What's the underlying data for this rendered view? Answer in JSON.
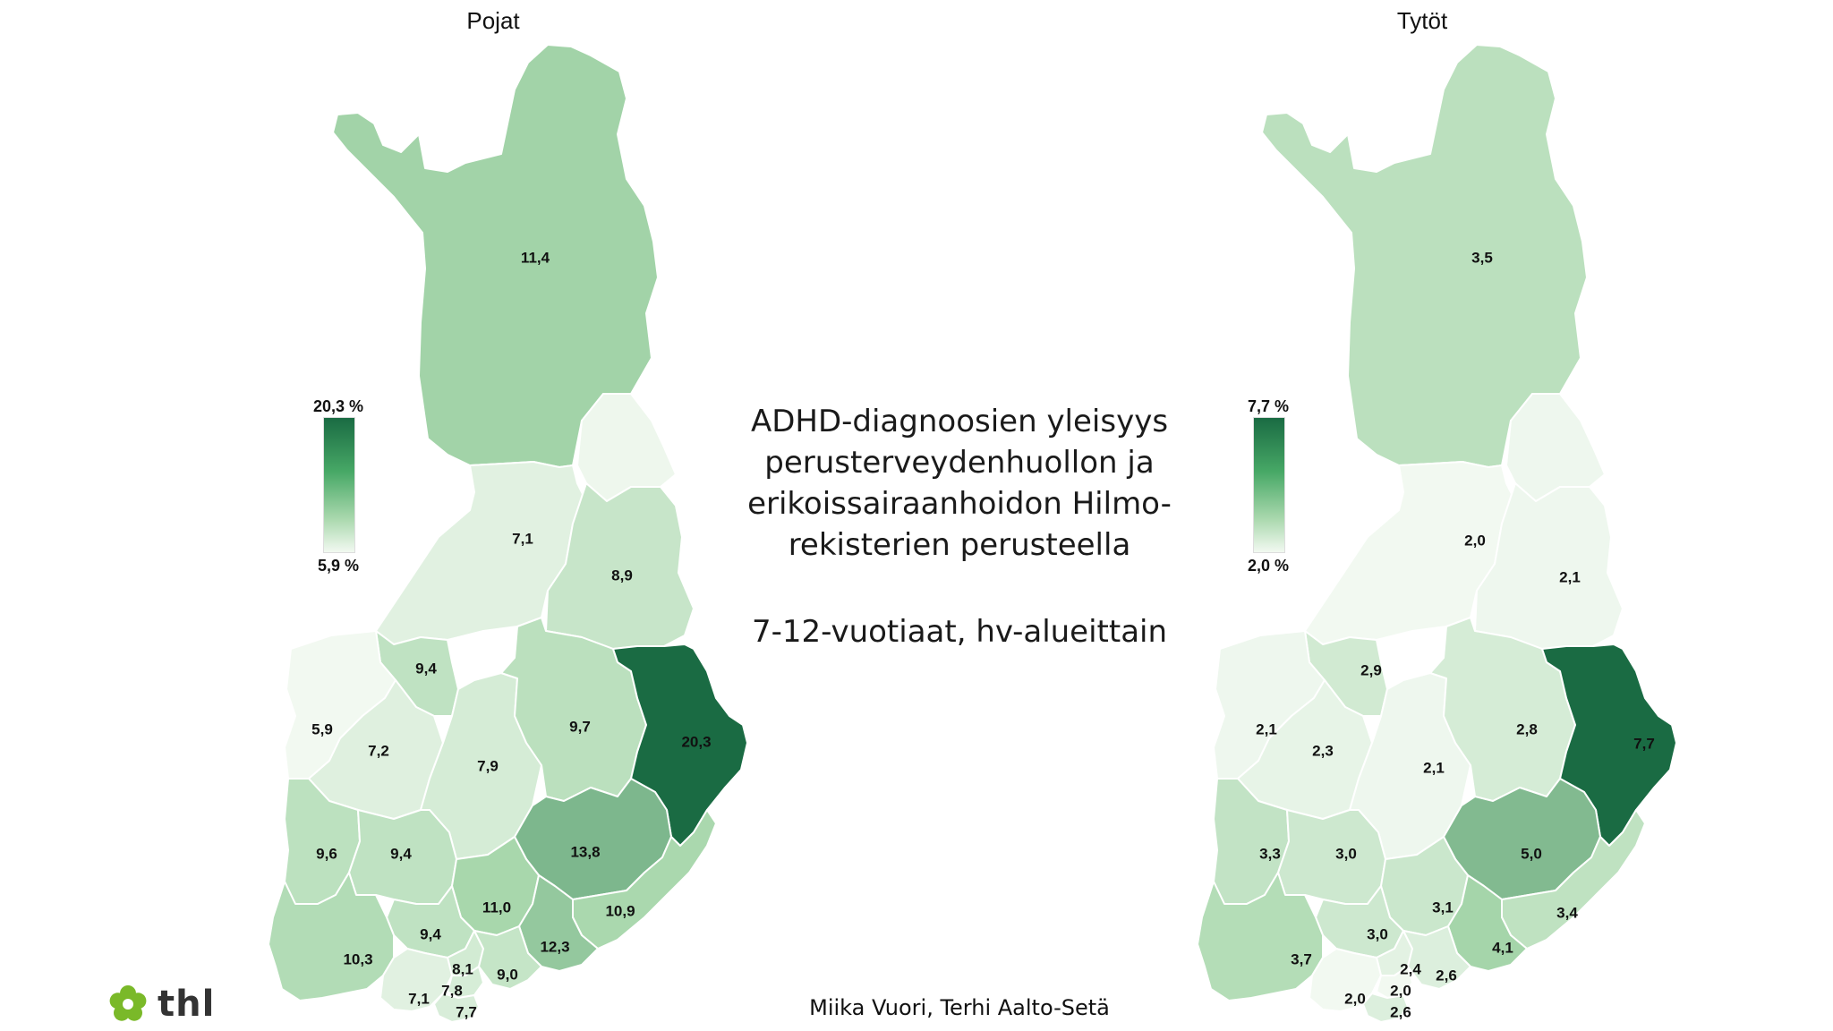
{
  "titles": {
    "left_map": "Pojat",
    "right_map": "Tytöt"
  },
  "center_title": {
    "lines": [
      "ADHD-diagnoosien yleisyys",
      "perusterveydenhuollon ja",
      "erikoissairaanhoidon Hilmo-",
      "rekisterien perusteella"
    ],
    "subtitle": "7-12-vuotiaat, hv-alueittain"
  },
  "credit": "Miika Vuori, Terhi Aalto-Setä",
  "logo": {
    "text": "thl",
    "icon": "flower-icon",
    "color": "#7ab929"
  },
  "colors": {
    "low": "#f2f9f1",
    "mid": "#a9d8ad",
    "high": "#1a6b43",
    "stroke": "#ffffff"
  },
  "maps": {
    "boys": {
      "legend_max": "20,3 %",
      "legend_min": "5,9 %",
      "min": 5.9,
      "max": 20.3,
      "regions": [
        {
          "id": "lappi",
          "label": "11,4",
          "value": 11.4
        },
        {
          "id": "koillismaa",
          "label": "",
          "value": 6.2
        },
        {
          "id": "pohjois-pohjanmaa",
          "label": "7,1",
          "value": 7.1
        },
        {
          "id": "kainuu",
          "label": "8,9",
          "value": 8.9
        },
        {
          "id": "keski-pohjanmaa",
          "label": "9,4",
          "value": 9.4
        },
        {
          "id": "pohjanmaa",
          "label": "5,9",
          "value": 5.9
        },
        {
          "id": "etela-pohjanmaa",
          "label": "7,2",
          "value": 7.2
        },
        {
          "id": "keski-suomi",
          "label": "7,9",
          "value": 7.9
        },
        {
          "id": "pohjois-savo",
          "label": "9,7",
          "value": 9.7
        },
        {
          "id": "pohjois-karjala",
          "label": "20,3",
          "value": 20.3
        },
        {
          "id": "satakunta",
          "label": "9,6",
          "value": 9.6
        },
        {
          "id": "pirkanmaa",
          "label": "9,4",
          "value": 9.4
        },
        {
          "id": "etela-savo",
          "label": "13,8",
          "value": 13.8
        },
        {
          "id": "paijat-hame",
          "label": "11,0",
          "value": 11.0
        },
        {
          "id": "etela-karjala",
          "label": "10,9",
          "value": 10.9
        },
        {
          "id": "kanta-hame",
          "label": "9,4",
          "value": 9.4
        },
        {
          "id": "kymenlaakso",
          "label": "12,3",
          "value": 12.3
        },
        {
          "id": "varsinais-suomi",
          "label": "10,3",
          "value": 10.3
        },
        {
          "id": "keski-uusimaa",
          "label": "8,1",
          "value": 8.1
        },
        {
          "id": "ita-uusimaa",
          "label": "9,0",
          "value": 9.0
        },
        {
          "id": "lansi-uusimaa",
          "label": "7,1",
          "value": 7.1
        },
        {
          "id": "vantaa-kerava",
          "label": "7,8",
          "value": 7.8
        },
        {
          "id": "helsinki",
          "label": "7,7",
          "value": 7.7
        }
      ]
    },
    "girls": {
      "legend_max": "7,7 %",
      "legend_min": "2,0 %",
      "min": 2.0,
      "max": 7.7,
      "regions": [
        {
          "id": "lappi",
          "label": "3,5",
          "value": 3.5
        },
        {
          "id": "koillismaa",
          "label": "",
          "value": 2.1
        },
        {
          "id": "pohjois-pohjanmaa",
          "label": "2,0",
          "value": 2.0
        },
        {
          "id": "kainuu",
          "label": "2,1",
          "value": 2.1
        },
        {
          "id": "keski-pohjanmaa",
          "label": "2,9",
          "value": 2.9
        },
        {
          "id": "pohjanmaa",
          "label": "2,1",
          "value": 2.1
        },
        {
          "id": "etela-pohjanmaa",
          "label": "2,3",
          "value": 2.3
        },
        {
          "id": "keski-suomi",
          "label": "2,1",
          "value": 2.1
        },
        {
          "id": "pohjois-savo",
          "label": "2,8",
          "value": 2.8
        },
        {
          "id": "pohjois-karjala",
          "label": "7,7",
          "value": 7.7
        },
        {
          "id": "satakunta",
          "label": "3,3",
          "value": 3.3
        },
        {
          "id": "pirkanmaa",
          "label": "3,0",
          "value": 3.0
        },
        {
          "id": "etela-savo",
          "label": "5,0",
          "value": 5.0
        },
        {
          "id": "paijat-hame",
          "label": "3,1",
          "value": 3.1
        },
        {
          "id": "etela-karjala",
          "label": "3,4",
          "value": 3.4
        },
        {
          "id": "kanta-hame",
          "label": "3,0",
          "value": 3.0
        },
        {
          "id": "kymenlaakso",
          "label": "4,1",
          "value": 4.1
        },
        {
          "id": "varsinais-suomi",
          "label": "3,7",
          "value": 3.7
        },
        {
          "id": "keski-uusimaa",
          "label": "2,4",
          "value": 2.4
        },
        {
          "id": "ita-uusimaa",
          "label": "2,6",
          "value": 2.6
        },
        {
          "id": "lansi-uusimaa",
          "label": "2,0",
          "value": 2.0
        },
        {
          "id": "vantaa-kerava",
          "label": "2,0",
          "value": 2.0
        },
        {
          "id": "helsinki",
          "label": "2,6",
          "value": 2.6
        }
      ]
    }
  }
}
